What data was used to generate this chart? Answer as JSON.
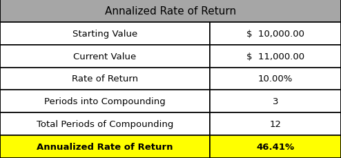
{
  "title": "Annalized Rate of Return",
  "rows": [
    {
      "label": "Starting Value",
      "value": "$  10,000.00",
      "bg": "#ffffff",
      "fg": "#000000"
    },
    {
      "label": "Current Value",
      "value": "$  11,000.00",
      "bg": "#ffffff",
      "fg": "#000000"
    },
    {
      "label": "Rate of Return",
      "value": "10.00%",
      "bg": "#ffffff",
      "fg": "#000000"
    },
    {
      "label": "Periods into Compounding",
      "value": "3",
      "bg": "#ffffff",
      "fg": "#000000"
    },
    {
      "label": "Total Periods of Compounding",
      "value": "12",
      "bg": "#ffffff",
      "fg": "#000000"
    },
    {
      "label": "Annualized Rate of Return",
      "value": "46.41%",
      "bg": "#ffff00",
      "fg": "#000000"
    }
  ],
  "header_bg": "#a6a6a6",
  "header_fg": "#000000",
  "col_split": 0.615,
  "border_color": "#000000",
  "font_size": 9.5,
  "title_font_size": 11,
  "fig_width": 4.94,
  "fig_height": 2.3,
  "dpi": 100
}
